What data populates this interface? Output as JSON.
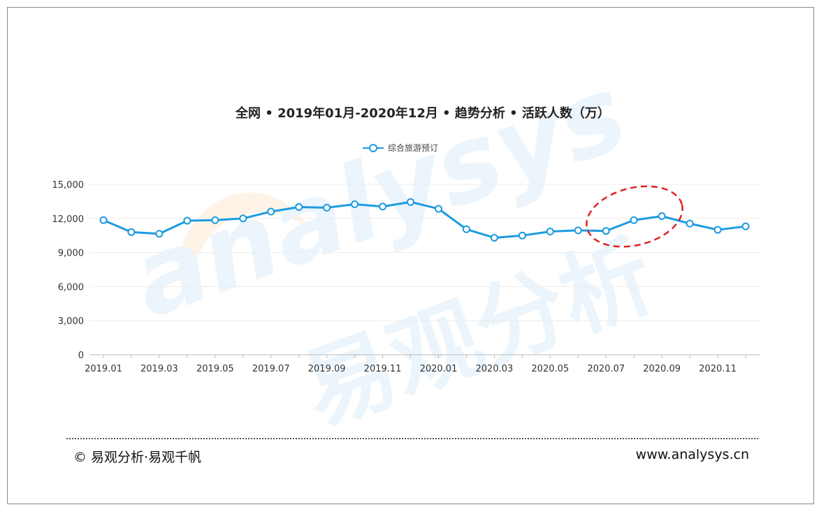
{
  "chart_data": {
    "type": "line",
    "title": "全网 • 2019年01月-2020年12月 • 趋势分析 • 活跃人数（万）",
    "legend": {
      "position": "top-center",
      "entries": [
        "综合旅游预订"
      ]
    },
    "x": [
      "2019.01",
      "2019.02",
      "2019.03",
      "2019.04",
      "2019.05",
      "2019.06",
      "2019.07",
      "2019.08",
      "2019.09",
      "2019.10",
      "2019.11",
      "2019.12",
      "2020.01",
      "2020.02",
      "2020.03",
      "2020.04",
      "2020.05",
      "2020.06",
      "2020.07",
      "2020.08",
      "2020.09",
      "2020.10",
      "2020.11",
      "2020.12"
    ],
    "x_tick_labels": [
      "2019.01",
      "2019.03",
      "2019.05",
      "2019.07",
      "2019.09",
      "2019.11",
      "2020.01",
      "2020.03",
      "2020.05",
      "2020.07",
      "2020.09",
      "2020.11"
    ],
    "y_ticks": [
      0,
      3000,
      6000,
      9000,
      12000,
      15000
    ],
    "y_tick_labels": [
      "0",
      "3,000",
      "6,000",
      "9,000",
      "12,000",
      "15,000"
    ],
    "ylim": [
      0,
      15000
    ],
    "grid": true,
    "series": [
      {
        "name": "综合旅游预订",
        "color": "#1e9be0",
        "values": [
          11850,
          10800,
          10650,
          11800,
          11850,
          12000,
          12600,
          13000,
          12950,
          13250,
          13050,
          13450,
          12850,
          11050,
          10300,
          10500,
          10850,
          10950,
          10900,
          11850,
          12200,
          11550,
          11000,
          11300
        ]
      }
    ],
    "annotation": {
      "type": "dashed-ellipse",
      "color": "#e02020",
      "covers": [
        "2020.07",
        "2020.08",
        "2020.09"
      ]
    }
  },
  "watermark": {
    "latin": "analysys",
    "chinese": "易观分析"
  },
  "footer": {
    "left": "© 易观分析·易观千帆",
    "right": "www.analysys.cn"
  }
}
